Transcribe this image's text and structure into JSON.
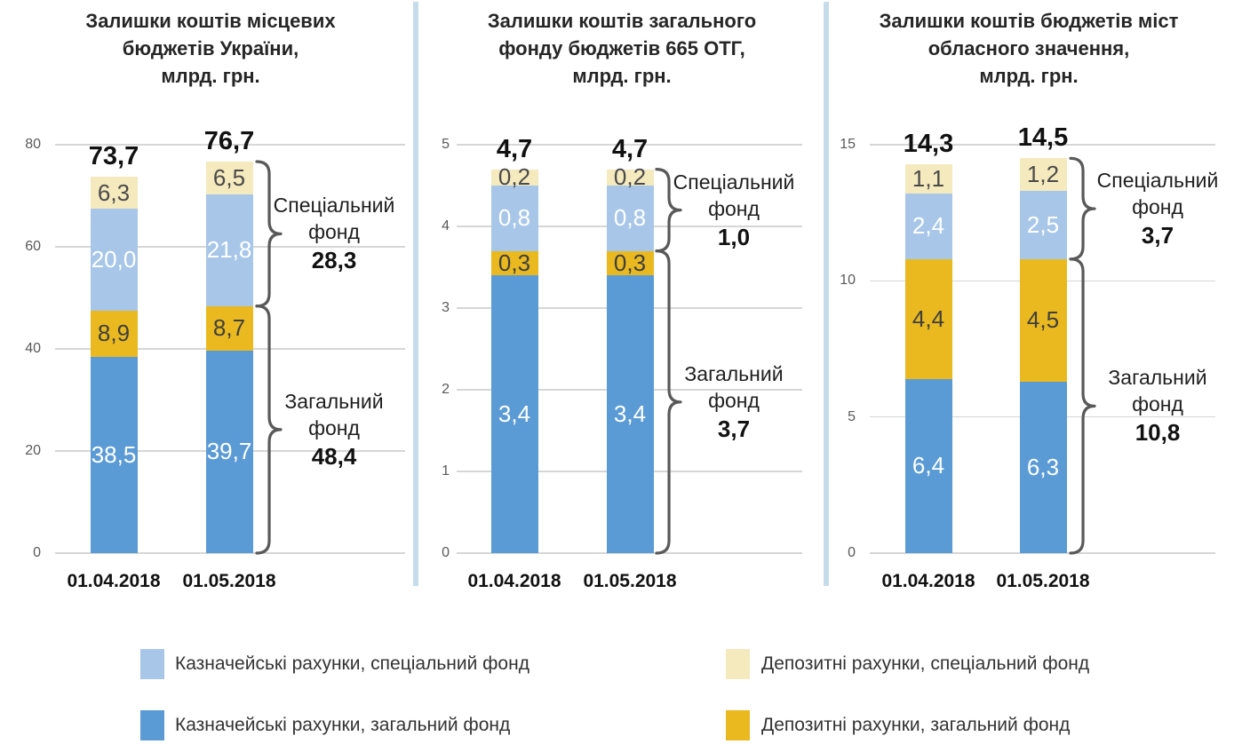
{
  "layout_hints": {
    "grid": true,
    "legend_position": "bottom",
    "bar_orientation": "vertical"
  },
  "chart_data": [
    {
      "type": "bar",
      "stacked": true,
      "title": "Залишки коштів місцевих бюджетів України, млрд. грн.",
      "title_lines": [
        "Залишки коштів місцевих",
        "бюджетів України,",
        "млрд. грн."
      ],
      "xlabel": "",
      "ylabel": "",
      "ylim": [
        0,
        80
      ],
      "yticks": [
        {
          "label": "0",
          "value": 0
        },
        {
          "label": "20",
          "value": 20
        },
        {
          "label": "40",
          "value": 40
        },
        {
          "label": "60",
          "value": 60
        },
        {
          "label": "80",
          "value": 80
        }
      ],
      "categories": [
        "01.04.2018",
        "01.05.2018"
      ],
      "totals": [
        "73,7",
        "76,7"
      ],
      "series": [
        {
          "key": "treasury_general",
          "name": "Казначейські рахунки, загальний фонд",
          "values": [
            38.5,
            39.7
          ],
          "labels": [
            "38,5",
            "39,7"
          ]
        },
        {
          "key": "deposit_general",
          "name": "Депозитні рахунки, загальний фонд",
          "values": [
            8.9,
            8.7
          ],
          "labels": [
            "8,9",
            "8,7"
          ]
        },
        {
          "key": "treasury_special",
          "name": "Казначейські рахунки, спеціальний фонд",
          "values": [
            20.0,
            21.8
          ],
          "labels": [
            "20,0",
            "21,8"
          ]
        },
        {
          "key": "deposit_special",
          "name": "Депозитні рахунки, спеціальний фонд",
          "values": [
            6.3,
            6.5
          ],
          "labels": [
            "6,3",
            "6,5"
          ]
        }
      ],
      "annotations": [
        {
          "lines": [
            "Спеціальний",
            "фонд"
          ],
          "value": "28,3",
          "from": 48.4,
          "to": 76.7
        },
        {
          "lines": [
            "Загальний",
            "фонд"
          ],
          "value": "48,4",
          "from": 0,
          "to": 48.4
        }
      ]
    },
    {
      "type": "bar",
      "stacked": true,
      "title": "Залишки коштів загального фонду бюджетів 665 ОТГ, млрд. грн.",
      "title_lines": [
        "Залишки коштів загального",
        "фонду бюджетів 665 ОТГ,",
        "млрд. грн."
      ],
      "xlabel": "",
      "ylabel": "",
      "ylim": [
        0,
        5
      ],
      "yticks": [
        {
          "label": "0",
          "value": 0
        },
        {
          "label": "1",
          "value": 1
        },
        {
          "label": "2",
          "value": 2
        },
        {
          "label": "3",
          "value": 3
        },
        {
          "label": "4",
          "value": 4
        },
        {
          "label": "5",
          "value": 5
        }
      ],
      "categories": [
        "01.04.2018",
        "01.05.2018"
      ],
      "totals": [
        "4,7",
        "4,7"
      ],
      "series": [
        {
          "key": "treasury_general",
          "name": "Казначейські рахунки, загальний фонд",
          "values": [
            3.4,
            3.4
          ],
          "labels": [
            "3,4",
            "3,4"
          ]
        },
        {
          "key": "deposit_general",
          "name": "Депозитні рахунки, загальний фонд",
          "values": [
            0.3,
            0.3
          ],
          "labels": [
            "0,3",
            "0,3"
          ]
        },
        {
          "key": "treasury_special",
          "name": "Казначейські рахунки, спеціальний фонд",
          "values": [
            0.8,
            0.8
          ],
          "labels": [
            "0,8",
            "0,8"
          ]
        },
        {
          "key": "deposit_special",
          "name": "Депозитні рахунки, спеціальний фонд",
          "values": [
            0.2,
            0.2
          ],
          "labels": [
            "0,2",
            "0,2"
          ]
        }
      ],
      "annotations": [
        {
          "lines": [
            "Спеціальний",
            "фонд"
          ],
          "value": "1,0",
          "from": 3.7,
          "to": 4.7
        },
        {
          "lines": [
            "Загальний",
            "фонд"
          ],
          "value": "3,7",
          "from": 0,
          "to": 3.7
        }
      ]
    },
    {
      "type": "bar",
      "stacked": true,
      "title": "Залишки коштів бюджетів міст обласного значення, млрд. грн.",
      "title_lines": [
        "Залишки коштів бюджетів міст",
        "обласного значення,",
        "млрд. грн."
      ],
      "xlabel": "",
      "ylabel": "",
      "ylim": [
        0,
        15
      ],
      "yticks": [
        {
          "label": "0",
          "value": 0
        },
        {
          "label": "5",
          "value": 5
        },
        {
          "label": "10",
          "value": 10
        },
        {
          "label": "15",
          "value": 15
        }
      ],
      "categories": [
        "01.04.2018",
        "01.05.2018"
      ],
      "totals": [
        "14,3",
        "14,5"
      ],
      "series": [
        {
          "key": "treasury_general",
          "name": "Казначейські рахунки, загальний фонд",
          "values": [
            6.4,
            6.3
          ],
          "labels": [
            "6,4",
            "6,3"
          ]
        },
        {
          "key": "deposit_general",
          "name": "Депозитні рахунки, загальний фонд",
          "values": [
            4.4,
            4.5
          ],
          "labels": [
            "4,4",
            "4,5"
          ]
        },
        {
          "key": "treasury_special",
          "name": "Казначейські рахунки, спеціальний фонд",
          "values": [
            2.4,
            2.5
          ],
          "labels": [
            "2,4",
            "2,5"
          ]
        },
        {
          "key": "deposit_special",
          "name": "Депозитні рахунки, спеціальний фонд",
          "values": [
            1.1,
            1.2
          ],
          "labels": [
            "1,1",
            "1,2"
          ]
        }
      ],
      "annotations": [
        {
          "lines": [
            "Спеціальний",
            "фонд"
          ],
          "value": "3,7",
          "from": 10.8,
          "to": 14.5
        },
        {
          "lines": [
            "Загальний",
            "фонд"
          ],
          "value": "10,8",
          "from": 0,
          "to": 10.8
        }
      ]
    }
  ],
  "legend": {
    "items": [
      {
        "key": "treasury_special",
        "label": "Казначейські рахунки, спеціальний фонд"
      },
      {
        "key": "treasury_general",
        "label": "Казначейські рахунки, загальний фонд"
      },
      {
        "key": "deposit_special",
        "label": "Депозитні рахунки, спеціальний фонд"
      },
      {
        "key": "deposit_general",
        "label": "Депозитні рахунки, загальний фонд"
      }
    ]
  },
  "colors": {
    "treasury_general": "#5B9BD5",
    "treasury_special": "#A8C7E8",
    "deposit_general": "#E9B91F",
    "deposit_special": "#F5E9BE",
    "gridline": "#D6D6D6",
    "divider": "#C7DCEA",
    "brace": "#595959"
  }
}
